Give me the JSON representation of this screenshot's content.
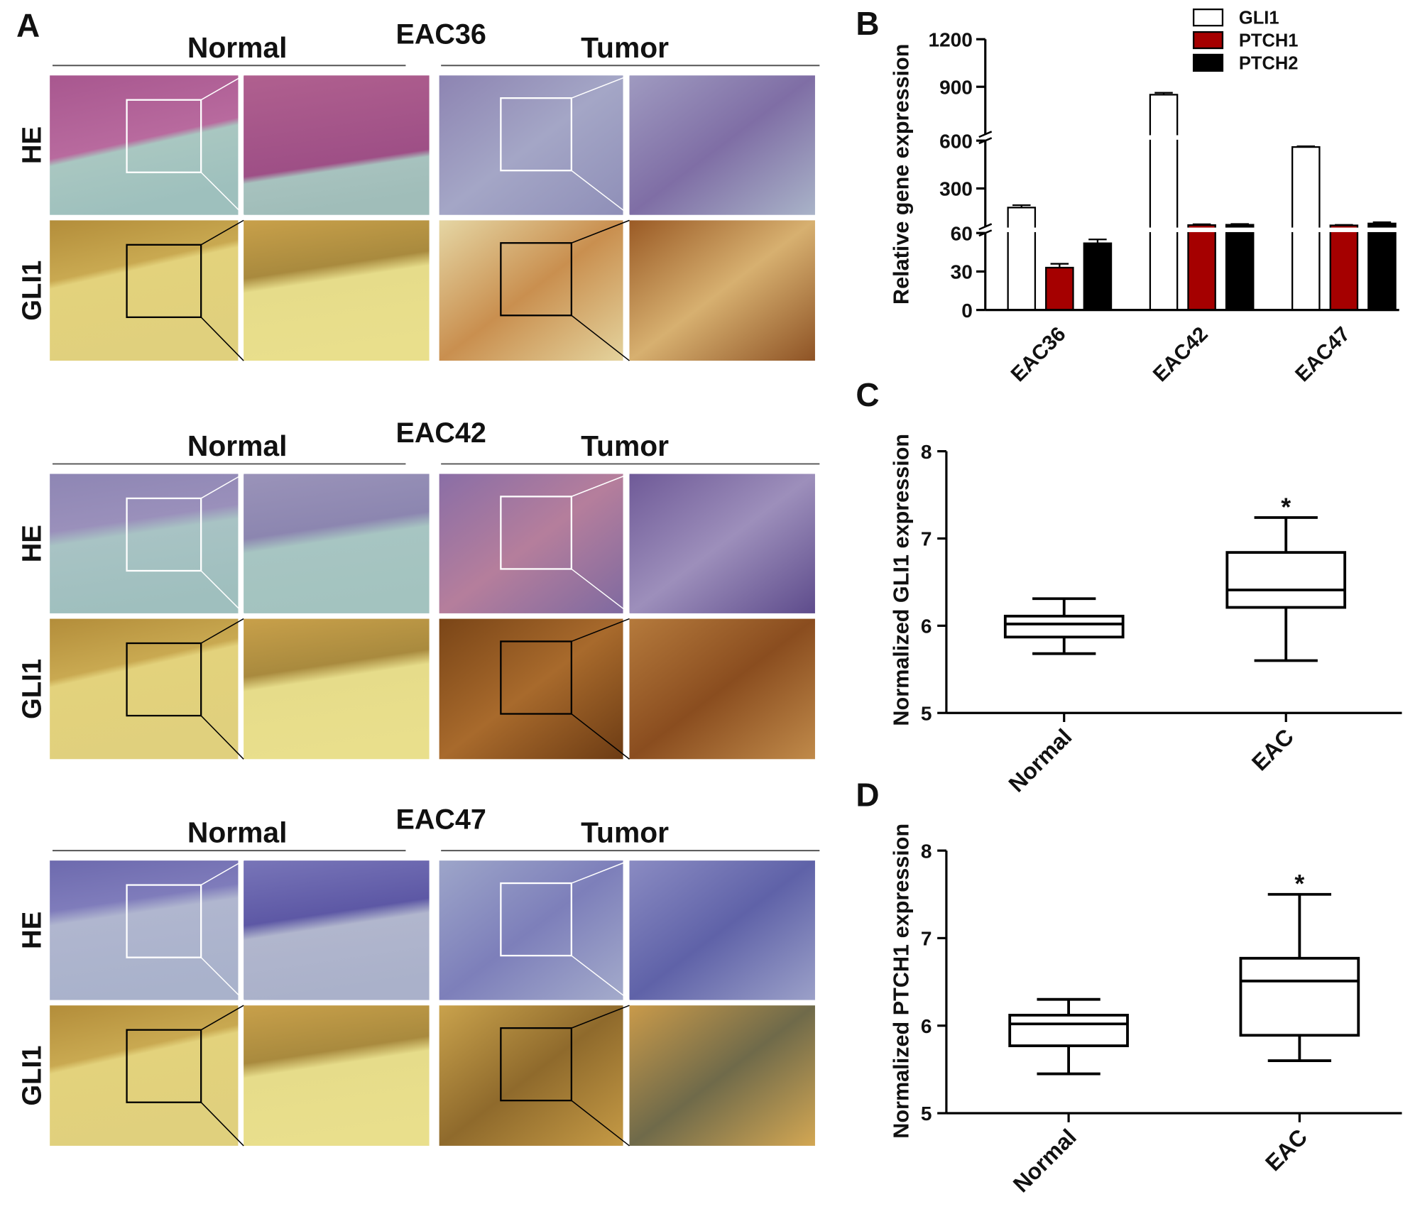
{
  "panel_a": {
    "panel": "A",
    "groups": [
      {
        "sample": "EAC36",
        "normal": "Normal",
        "tumor": "Tumor",
        "stains": [
          "HE",
          "GLI1"
        ]
      },
      {
        "sample": "EAC42",
        "normal": "Normal",
        "tumor": "Tumor",
        "stains": [
          "HE",
          "GLI1"
        ]
      },
      {
        "sample": "EAC47",
        "normal": "Normal",
        "tumor": "Tumor",
        "stains": [
          "HE",
          "GLI1"
        ]
      }
    ]
  },
  "chart_data": [
    {
      "type": "bar",
      "panel": "B",
      "ylabel": "Relative gene expression",
      "categories": [
        "EAC36",
        "EAC42",
        "EAC47"
      ],
      "series": [
        {
          "name": "GLI1",
          "color": "#ffffff",
          "edgecolor": "#000000",
          "values": [
            180,
            850,
            560
          ],
          "errors": [
            15,
            12,
            5
          ]
        },
        {
          "name": "PTCH1",
          "color": "#a50000",
          "edgecolor": "#000000",
          "values": [
            33,
            70,
            68
          ],
          "errors": [
            3,
            5,
            3
          ]
        },
        {
          "name": "PTCH2",
          "color": "#000000",
          "edgecolor": "#000000",
          "values": [
            52,
            72,
            80
          ],
          "errors": [
            3,
            5,
            8
          ]
        }
      ],
      "ylim": [
        0,
        1200
      ],
      "y_breaks": [
        [
          0,
          60
        ],
        [
          60,
          600
        ],
        [
          600,
          1200
        ]
      ],
      "yticks": [
        0,
        30,
        60,
        300,
        600,
        900,
        1200
      ],
      "legend": "top-right"
    },
    {
      "type": "box",
      "panel": "C",
      "ylabel": "Normalized GLI1 expression",
      "categories": [
        "Normal",
        "EAC"
      ],
      "min": [
        5.68,
        5.6
      ],
      "q1": [
        5.87,
        6.21
      ],
      "median": [
        6.02,
        6.41
      ],
      "q3": [
        6.11,
        6.84
      ],
      "max": [
        6.31,
        7.24
      ],
      "annotation": {
        "text": "*",
        "category": "EAC"
      },
      "ylim": [
        5,
        8
      ],
      "yticks": [
        5,
        6,
        7,
        8
      ]
    },
    {
      "type": "box",
      "panel": "D",
      "ylabel": "Normalized PTCH1 expression",
      "categories": [
        "Normal",
        "EAC"
      ],
      "min": [
        5.45,
        5.6
      ],
      "q1": [
        5.77,
        5.89
      ],
      "median": [
        6.02,
        6.51
      ],
      "q3": [
        6.12,
        6.77
      ],
      "max": [
        6.3,
        7.5
      ],
      "annotation": {
        "text": "*",
        "category": "EAC"
      },
      "ylim": [
        5,
        8
      ],
      "yticks": [
        5,
        6,
        7,
        8
      ]
    }
  ]
}
